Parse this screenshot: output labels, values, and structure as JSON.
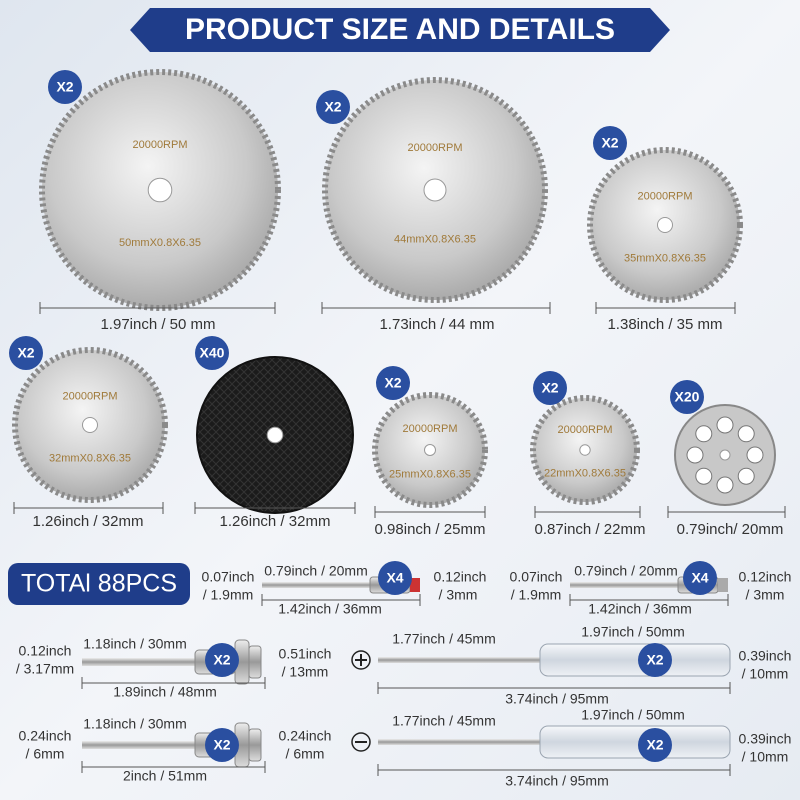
{
  "header": {
    "title": "PRODUCT SIZE AND DETAILS"
  },
  "blades": [
    {
      "quantity": "X2",
      "rpm": "20000RPM",
      "spec": "50mmX0.8X6.35",
      "size": "1.97inch / 50 mm"
    },
    {
      "quantity": "X2",
      "rpm": "20000RPM",
      "spec": "44mmX0.8X6.35",
      "size": "1.73inch / 44 mm"
    },
    {
      "quantity": "X2",
      "rpm": "20000RPM",
      "spec": "35mmX0.8X6.35",
      "size": "1.38inch / 35 mm"
    },
    {
      "quantity": "X2",
      "rpm": "20000RPM",
      "spec": "32mmX0.8X6.35",
      "size": "1.26inch / 32mm"
    },
    {
      "quantity": "X40",
      "size": "1.26inch / 32mm"
    },
    {
      "quantity": "X2",
      "rpm": "20000RPM",
      "spec": "25mmX0.8X6.35",
      "size": "0.98inch / 25mm"
    },
    {
      "quantity": "X2",
      "rpm": "20000RPM",
      "spec": "22mmX0.8X6.35",
      "size": "0.87inch / 22mm"
    },
    {
      "quantity": "X20",
      "size": "0.79inch/ 20mm"
    }
  ],
  "total": "TOTAl 88PCS",
  "accessories": [
    {
      "quantity": "X4",
      "labels": [
        "0.07inch",
        "/ 1.9mm",
        "0.79inch / 20mm",
        "0.12inch",
        "/ 3mm",
        "1.42inch / 36mm"
      ]
    },
    {
      "quantity": "X4",
      "labels": [
        "0.07inch",
        "/ 1.9mm",
        "0.79inch / 20mm",
        "0.12inch",
        "/ 3mm",
        "1.42inch / 36mm"
      ]
    },
    {
      "quantity": "X2",
      "labels": [
        "0.12inch",
        "/ 3.17mm",
        "1.18inch / 30mm",
        "0.51inch",
        "/ 13mm",
        "1.89inch / 48mm"
      ]
    },
    {
      "quantity": "X2",
      "labels": [
        "1.77inch / 45mm",
        "1.97inch / 50mm",
        "0.39inch",
        "/ 10mm",
        "3.74inch / 95mm"
      ]
    },
    {
      "quantity": "X2",
      "labels": [
        "0.24inch",
        "/ 6mm",
        "1.18inch / 30mm",
        "0.24inch",
        "/ 6mm",
        "2inch / 51mm"
      ]
    },
    {
      "quantity": "X2",
      "labels": [
        "1.77inch / 45mm",
        "1.97inch / 50mm",
        "0.39inch",
        "/ 10mm",
        "3.74inch / 95mm"
      ]
    }
  ]
}
